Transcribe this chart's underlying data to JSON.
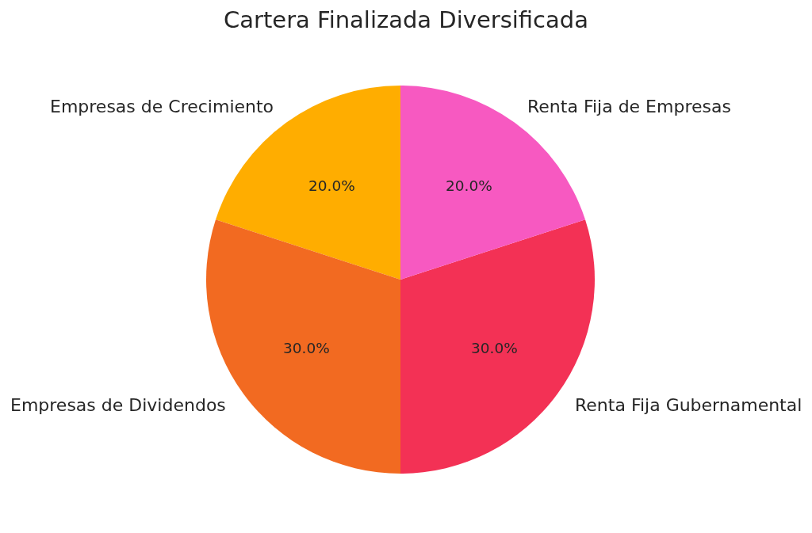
{
  "chart_data": {
    "type": "pie",
    "title": "Cartera Finalizada Diversificada",
    "categories": [
      "Empresas de Crecimiento",
      "Empresas de Dividendos",
      "Renta Fija Gubernamental",
      "Renta Fija de Empresas"
    ],
    "values": [
      20,
      30,
      30,
      20
    ],
    "colors": [
      "#ffad00",
      "#f26a21",
      "#f33155",
      "#f759c1"
    ],
    "value_labels": [
      "20.0%",
      "30.0%",
      "30.0%",
      "20.0%"
    ]
  }
}
